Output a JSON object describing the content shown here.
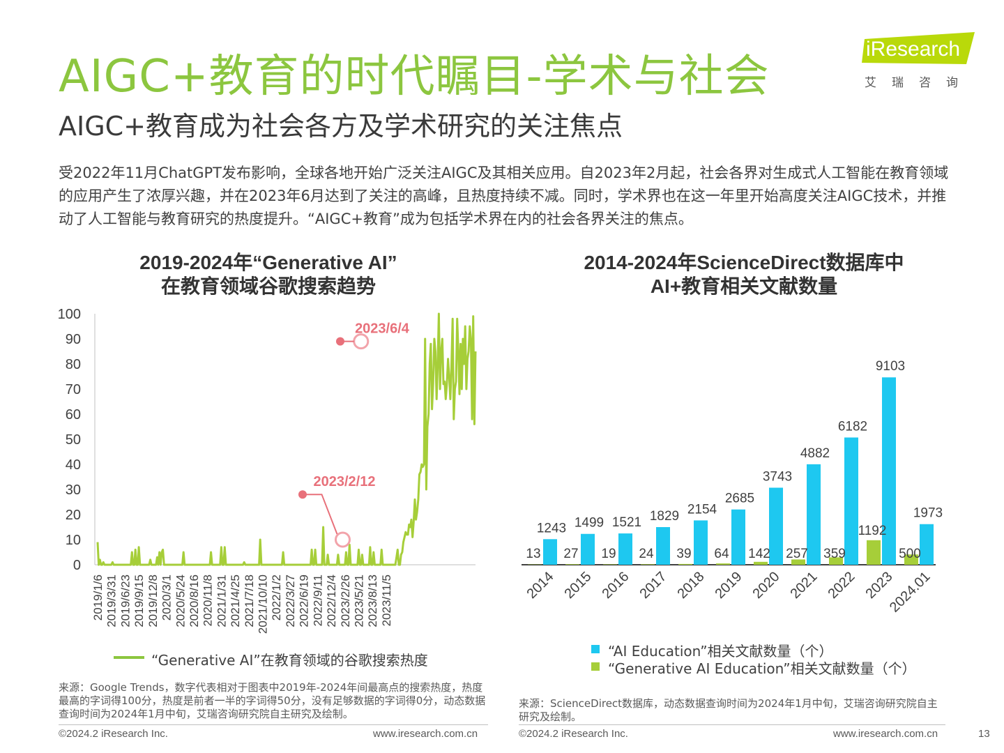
{
  "header": {
    "title": "AIGC+教育的时代瞩目-学术与社会",
    "subtitle": "AIGC+教育成为社会各方及学术研究的关注焦点",
    "logo_text": "iResearch",
    "logo_sub": "艾瑞咨询",
    "accent_color": "#8cc63f"
  },
  "intro": "受2022年11月ChatGPT发布影响，全球各地开始广泛关注AIGC及其相关应用。自2023年2月起，社会各界对生成式人工智能在教育领域的应用产生了浓厚兴趣，并在2023年6月达到了关注的高峰，且热度持续不减。同时，学术界也在这一年里开始高度关注AIGC技术，并推动了人工智能与教育研究的热度提升。“AIGC+教育”成为包括学术界在内的社会各界关注的焦点。",
  "chart_data": [
    {
      "type": "line",
      "title_line1": "2019-2024年“Generative AI”",
      "title_line2": "在教育领域谷歌搜索趋势",
      "ylim": [
        0,
        100
      ],
      "yticks": [
        0,
        10,
        20,
        30,
        40,
        50,
        60,
        70,
        80,
        90,
        100
      ],
      "xticks": [
        "2019/1/6",
        "2019/3/31",
        "2019/6/23",
        "2019/9/15",
        "2019/12/8",
        "2020/3/1",
        "2020/5/24",
        "2020/8/16",
        "2020/11/8",
        "2021/1/31",
        "2021/4/25",
        "2021/7/18",
        "2021/10/10",
        "2022/1/2",
        "2022/3/27",
        "2022/6/19",
        "2022/9/11",
        "2022/12/4",
        "2023/2/26",
        "2023/5/21",
        "2023/8/13",
        "2023/11/5"
      ],
      "series": [
        {
          "name": "“Generative AI”在教育领域的谷歌搜索热度",
          "color": "#a6ce39",
          "x_week_start": "2019/1/6",
          "values": [
            9,
            0,
            2,
            0,
            0,
            1,
            0,
            0,
            0,
            0,
            0,
            0,
            0,
            1,
            0,
            0,
            0,
            0,
            0,
            0,
            0,
            0,
            0,
            0,
            0,
            0,
            0,
            0,
            0,
            0,
            5,
            0,
            0,
            6,
            0,
            0,
            7,
            0,
            0,
            0,
            0,
            0,
            0,
            0,
            0,
            0,
            2,
            0,
            0,
            0,
            0,
            0,
            3,
            0,
            5,
            0,
            5,
            6,
            0,
            0,
            0,
            0,
            0,
            0,
            0,
            0,
            0,
            0,
            0,
            0,
            0,
            0,
            0,
            0,
            0,
            5,
            0,
            0,
            0,
            0,
            0,
            0,
            0,
            0,
            0,
            0,
            0,
            0,
            0,
            0,
            0,
            0,
            0,
            0,
            0,
            0,
            0,
            0,
            0,
            5,
            0,
            0,
            0,
            0,
            0,
            0,
            0,
            0,
            7,
            0,
            0,
            7,
            0,
            0,
            0,
            0,
            0,
            0,
            0,
            0,
            0,
            0,
            0,
            0,
            0,
            0,
            0,
            0,
            1,
            0,
            0,
            0,
            0,
            0,
            0,
            0,
            0,
            0,
            0,
            0,
            0,
            0,
            10,
            0,
            0,
            0,
            0,
            0,
            0,
            0,
            0,
            0,
            0,
            0,
            0,
            0,
            0,
            0,
            0,
            0,
            0,
            0,
            5,
            0,
            0,
            0,
            0,
            0,
            0,
            0,
            0,
            0,
            0,
            0,
            0,
            0,
            0,
            0,
            0,
            0,
            0,
            0,
            0,
            0,
            0,
            0,
            0,
            6,
            0,
            0,
            6,
            0,
            0,
            0,
            0,
            0,
            0,
            15,
            0,
            0,
            0,
            4,
            0,
            0,
            0,
            0,
            0,
            0,
            0,
            0,
            4,
            0,
            0,
            0,
            0,
            0,
            0,
            5,
            0,
            0,
            8,
            0,
            0,
            0,
            0,
            0,
            0,
            0,
            6,
            0,
            0,
            4,
            0,
            0,
            0,
            0,
            0,
            0,
            7,
            0,
            0,
            5,
            0,
            0,
            0,
            0,
            0,
            0,
            6,
            0,
            0,
            0,
            0,
            0,
            0,
            0,
            0,
            0,
            0,
            0,
            0,
            3,
            6,
            0,
            0,
            4,
            5,
            9,
            11,
            13,
            12,
            12,
            16,
            15,
            18,
            11,
            17,
            26,
            18,
            21,
            26,
            36,
            37,
            40,
            39,
            40,
            90,
            30,
            55,
            60,
            80,
            88,
            62,
            72,
            90,
            85,
            66,
            80,
            100,
            70,
            85,
            90,
            72,
            73,
            66,
            72,
            82,
            75,
            66,
            79,
            98,
            58,
            70,
            73,
            98,
            85,
            68,
            88,
            70,
            90,
            80,
            95,
            70,
            82,
            85,
            95,
            90,
            58,
            99,
            56,
            85
          ]
        }
      ],
      "annotations": [
        {
          "label": "2023/2/12",
          "value": 10
        },
        {
          "label": "2023/6/4",
          "value": 89
        }
      ]
    },
    {
      "type": "bar",
      "title_line1": "2014-2024年ScienceDirect数据库中",
      "title_line2": "AI+教育相关文献数量",
      "categories": [
        "2014",
        "2015",
        "2016",
        "2017",
        "2018",
        "2019",
        "2020",
        "2021",
        "2022",
        "2023",
        "2024.01"
      ],
      "series": [
        {
          "name": "“AI Education”相关文献数量（个）",
          "color": "#1ec8f0",
          "values": [
            1243,
            1499,
            1521,
            1829,
            2154,
            2685,
            3743,
            4882,
            6182,
            9103,
            1973
          ]
        },
        {
          "name": "“Generative AI Education”相关文献数量（个）",
          "color": "#a6ce39",
          "values": [
            13,
            27,
            19,
            24,
            39,
            64,
            142,
            257,
            359,
            1192,
            500
          ]
        }
      ]
    }
  ],
  "sources": {
    "left": "来源：Google Trends，数字代表相对于图表中2019年-2024年间最高点的搜索热度，热度最高的字词得100分，热度是前者一半的字词得50分，没有足够数据的字词得0分，动态数据查询时间为2024年1月中旬，艾瑞咨询研究院自主研究及绘制。",
    "right": "来源：ScienceDirect数据库，动态数据查询时间为2024年1月中旬，艾瑞咨询研究院自主研究及绘制。"
  },
  "footer": {
    "copyright": "©2024.2 iResearch Inc.",
    "website": "www.iresearch.com.cn",
    "page_number": "13"
  }
}
